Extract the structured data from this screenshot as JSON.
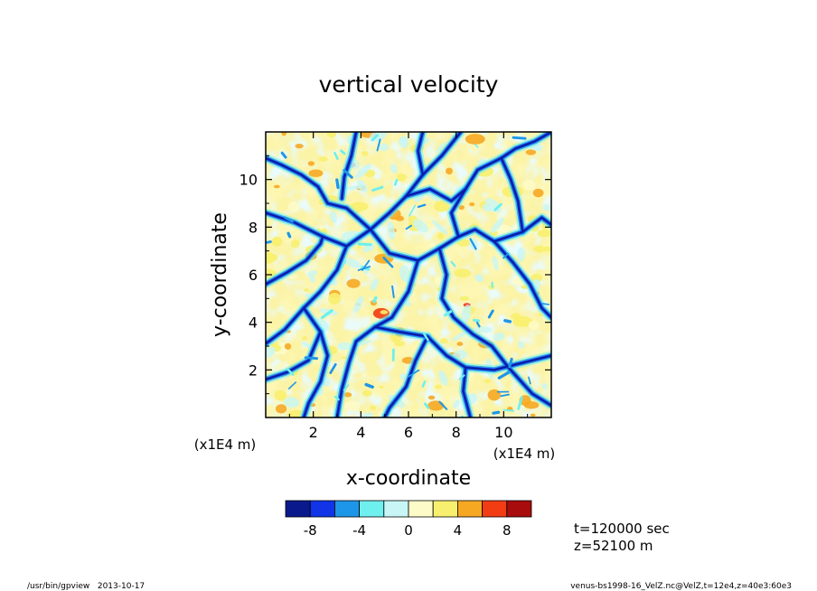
{
  "chart_data": {
    "type": "heatmap",
    "title": "vertical velocity",
    "xlabel": "x-coordinate",
    "ylabel": "y-coordinate",
    "x_unit_label": "(x1E4 m)",
    "y_unit_label": "(x1E4 m)",
    "xlim": [
      0,
      12
    ],
    "ylim": [
      0,
      12
    ],
    "x_ticks": [
      2,
      4,
      6,
      8,
      10
    ],
    "y_ticks": [
      2,
      4,
      6,
      8,
      10
    ],
    "colorbar": {
      "colors": [
        "#0a1a8c",
        "#1034e6",
        "#1e96e8",
        "#6ef0ee",
        "#c8f6f6",
        "#fdfbc8",
        "#f8ef6e",
        "#f6a823",
        "#f23c14",
        "#a80c0c"
      ],
      "tick_labels": [
        "-8",
        "-4",
        "0",
        "4",
        "8"
      ],
      "tick_values": [
        -8,
        -4,
        0,
        4,
        8
      ],
      "levels": [
        -10,
        -8,
        -6,
        -4,
        -2,
        0,
        2,
        4,
        6,
        8,
        10
      ]
    },
    "field_description": "cellular convection pattern: broad weak updrafts (0 to 4) bounded by narrow downdraft lanes (-4 to -10)"
  },
  "annotations": {
    "time": "t=120000 sec",
    "height": "z=52100 m"
  },
  "footer": {
    "left": "/usr/bin/gpview   2013-10-17",
    "right": "venus-bs1998-16_VelZ.nc@VelZ,t=12e4,z=40e3:60e3"
  }
}
